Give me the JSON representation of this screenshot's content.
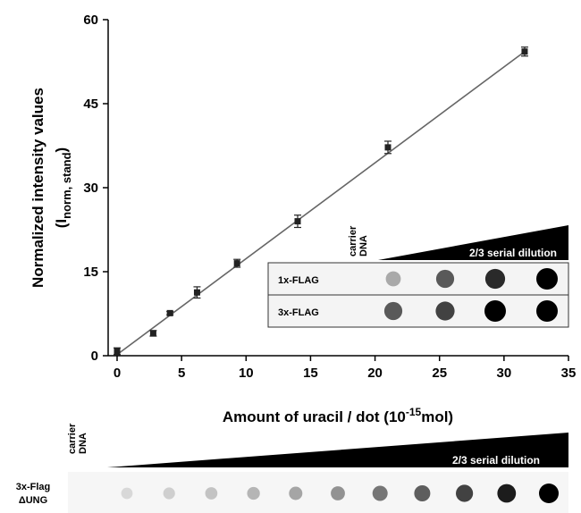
{
  "chart_data": {
    "type": "scatter",
    "title": "",
    "xlabel": "Amount of uracil / dot (10",
    "xlabel_exp": "-15",
    "xlabel_unit": "mol)",
    "ylabel_line1": "Normalized intensity values",
    "ylabel_line2_open": "(I",
    "ylabel_line2_sub": "norm, stand",
    "ylabel_line2_close": ")",
    "xlim": [
      0,
      35
    ],
    "ylim": [
      0,
      60
    ],
    "xticks": [
      0,
      5,
      10,
      15,
      20,
      25,
      30,
      35
    ],
    "yticks": [
      0,
      15,
      30,
      45,
      60
    ],
    "xtick_labels": [
      "0",
      "5",
      "10",
      "15",
      "20",
      "25",
      "30",
      "35"
    ],
    "ytick_labels": [
      "0",
      "15",
      "30",
      "45",
      "60"
    ],
    "grid": false,
    "series": [
      {
        "marker": "square",
        "color": "#222222",
        "x": [
          0,
          2.8,
          4.1,
          6.2,
          9.3,
          14.0,
          21.0,
          31.6
        ],
        "y": [
          0.8,
          4.0,
          7.6,
          11.3,
          16.5,
          24.0,
          37.2,
          54.3
        ],
        "yerr": [
          0.6,
          0.5,
          0.3,
          1.0,
          0.7,
          1.1,
          1.1,
          0.8
        ]
      }
    ],
    "fit_line": {
      "x": [
        0,
        31.6
      ],
      "y": [
        0.2,
        54.3
      ],
      "color": "#666666"
    }
  },
  "inset": {
    "carrier_label_line1": "carrier",
    "carrier_label_line2": "DNA",
    "dilution_label": "2/3 serial dilution",
    "rows": [
      {
        "label": "1x-FLAG",
        "dot_darkness": [
          0.28,
          0.62,
          0.82,
          1.0
        ]
      },
      {
        "label": "3x-FLAG",
        "dot_darkness": [
          0.62,
          0.72,
          1.0,
          1.0
        ]
      }
    ]
  },
  "bottom_blot": {
    "carrier_label_line1": "carrier",
    "carrier_label_line2": "DNA",
    "dilution_label": "2/3 serial dilution",
    "row_label_line1": "3x-Flag",
    "row_label_line2": "ΔUNG",
    "dot_darkness": [
      0.08,
      0.12,
      0.17,
      0.23,
      0.3,
      0.38,
      0.5,
      0.6,
      0.72,
      0.88,
      1.0
    ]
  }
}
